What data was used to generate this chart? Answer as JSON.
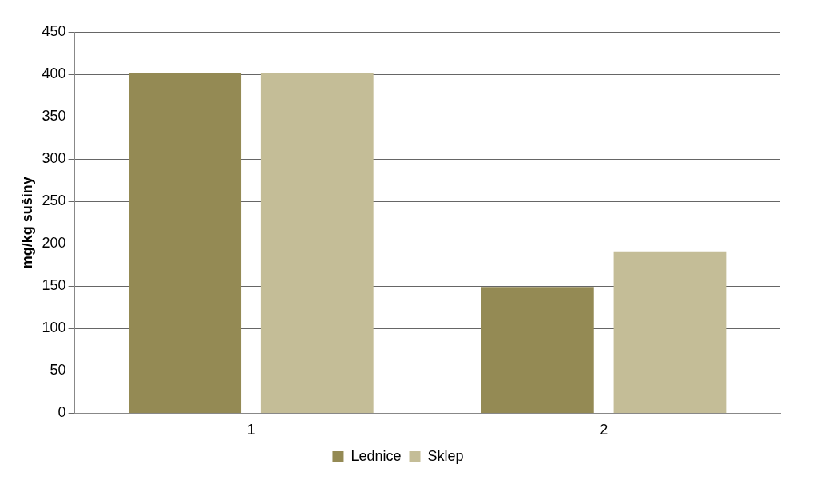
{
  "chart_data": {
    "type": "bar",
    "ylabel": "mg/kg sušiny",
    "categories": [
      "1",
      "2"
    ],
    "series": [
      {
        "name": "Lednice",
        "color": "#948a54",
        "values": [
          402,
          149
        ]
      },
      {
        "name": "Sklep",
        "color": "#c4bd97",
        "values": [
          402,
          191
        ]
      }
    ],
    "ylim": [
      0,
      450
    ],
    "yticks": [
      0,
      50,
      100,
      150,
      200,
      250,
      300,
      350,
      400,
      450
    ],
    "grid": "y",
    "legend": "bottom"
  }
}
